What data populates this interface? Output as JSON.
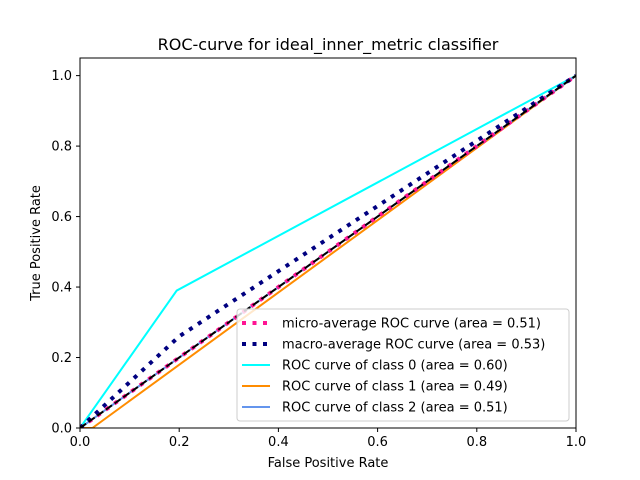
{
  "chart_data": {
    "type": "line",
    "title": "ROC-curve for ideal_inner_metric classifier",
    "xlabel": "False Positive Rate",
    "ylabel": "True Positive Rate",
    "xlim": [
      0.0,
      1.0
    ],
    "ylim": [
      0.0,
      1.05
    ],
    "xticks": [
      "0.0",
      "0.2",
      "0.4",
      "0.6",
      "0.8",
      "1.0"
    ],
    "yticks": [
      "0.0",
      "0.2",
      "0.4",
      "0.6",
      "0.8",
      "1.0"
    ],
    "grid": false,
    "legend_position": "lower-right",
    "series": [
      {
        "name": "micro-average ROC curve (area = 0.51)",
        "color": "#ff1493",
        "style": "dotted",
        "points": [
          [
            0,
            0
          ],
          [
            1,
            1
          ]
        ]
      },
      {
        "name": "macro-average ROC curve (area = 0.53)",
        "color": "#000080",
        "style": "dotted",
        "points": [
          [
            0,
            0
          ],
          [
            0.2,
            0.26
          ],
          [
            1,
            1
          ]
        ]
      },
      {
        "name": "ROC curve of class 0 (area = 0.60)",
        "color": "#00ffff",
        "style": "solid",
        "points": [
          [
            0,
            0
          ],
          [
            0.195,
            0.39
          ],
          [
            1,
            1
          ]
        ]
      },
      {
        "name": "ROC curve of class 1 (area = 0.49)",
        "color": "#ff8c00",
        "style": "solid",
        "points": [
          [
            0,
            0
          ],
          [
            0.025,
            0
          ],
          [
            1,
            1
          ]
        ]
      },
      {
        "name": "ROC curve of class 2 (area = 0.51)",
        "color": "#6495ed",
        "style": "solid",
        "points": [
          [
            0,
            0
          ],
          [
            1,
            1
          ]
        ]
      }
    ],
    "reference_line": {
      "color": "#000000",
      "style": "dashed",
      "points": [
        [
          0,
          0
        ],
        [
          1,
          1
        ]
      ]
    }
  }
}
